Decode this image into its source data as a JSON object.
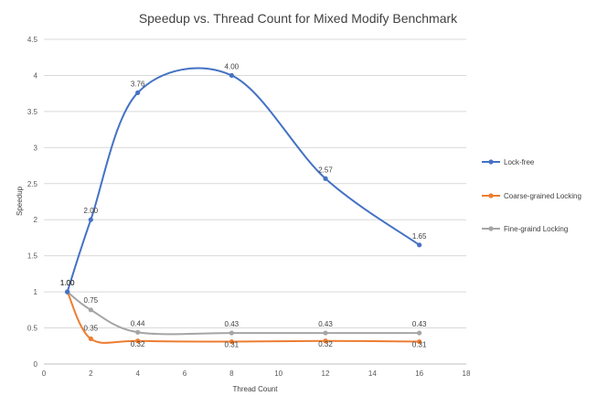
{
  "chart_data": {
    "type": "scatter",
    "title": "Speedup vs. Thread Count for Mixed Modify Benchmark",
    "xlabel": "Thread Count",
    "ylabel": "Speedup",
    "xlim": [
      0,
      18
    ],
    "ylim": [
      0,
      4.5
    ],
    "x_ticks": [
      "0",
      "2",
      "4",
      "6",
      "8",
      "10",
      "12",
      "14",
      "16",
      "18"
    ],
    "y_ticks": [
      "0",
      "0.5",
      "1",
      "1.5",
      "2",
      "2.5",
      "3",
      "3.5",
      "4",
      "4.5"
    ],
    "grid": "horizontal",
    "smooth_lines": true,
    "legend_position": "right",
    "series": [
      {
        "name": "Lock-free",
        "color": "#4472C4",
        "x": [
          1,
          2,
          4,
          8,
          12,
          16
        ],
        "y": [
          1.0,
          2.0,
          3.76,
          4.0,
          2.57,
          1.65
        ],
        "labels": [
          "1.00",
          "2.00",
          "3.76",
          "4.00",
          "2.57",
          "1.65"
        ]
      },
      {
        "name": "Coarse-grained Locking",
        "color": "#ED7D31",
        "x": [
          1,
          2,
          4,
          8,
          12,
          16
        ],
        "y": [
          1.0,
          0.35,
          0.32,
          0.31,
          0.32,
          0.31
        ],
        "labels": [
          "1.00",
          "0.35",
          "0.32",
          "0.31",
          "0.32",
          "0.31"
        ]
      },
      {
        "name": "Fine-graind Locking",
        "color": "#A5A5A5",
        "x": [
          1,
          2,
          4,
          8,
          12,
          16
        ],
        "y": [
          1.0,
          0.75,
          0.44,
          0.43,
          0.43,
          0.43
        ],
        "labels": [
          "1.00",
          "0.75",
          "0.44",
          "0.43",
          "0.43",
          "0.43"
        ]
      }
    ]
  }
}
